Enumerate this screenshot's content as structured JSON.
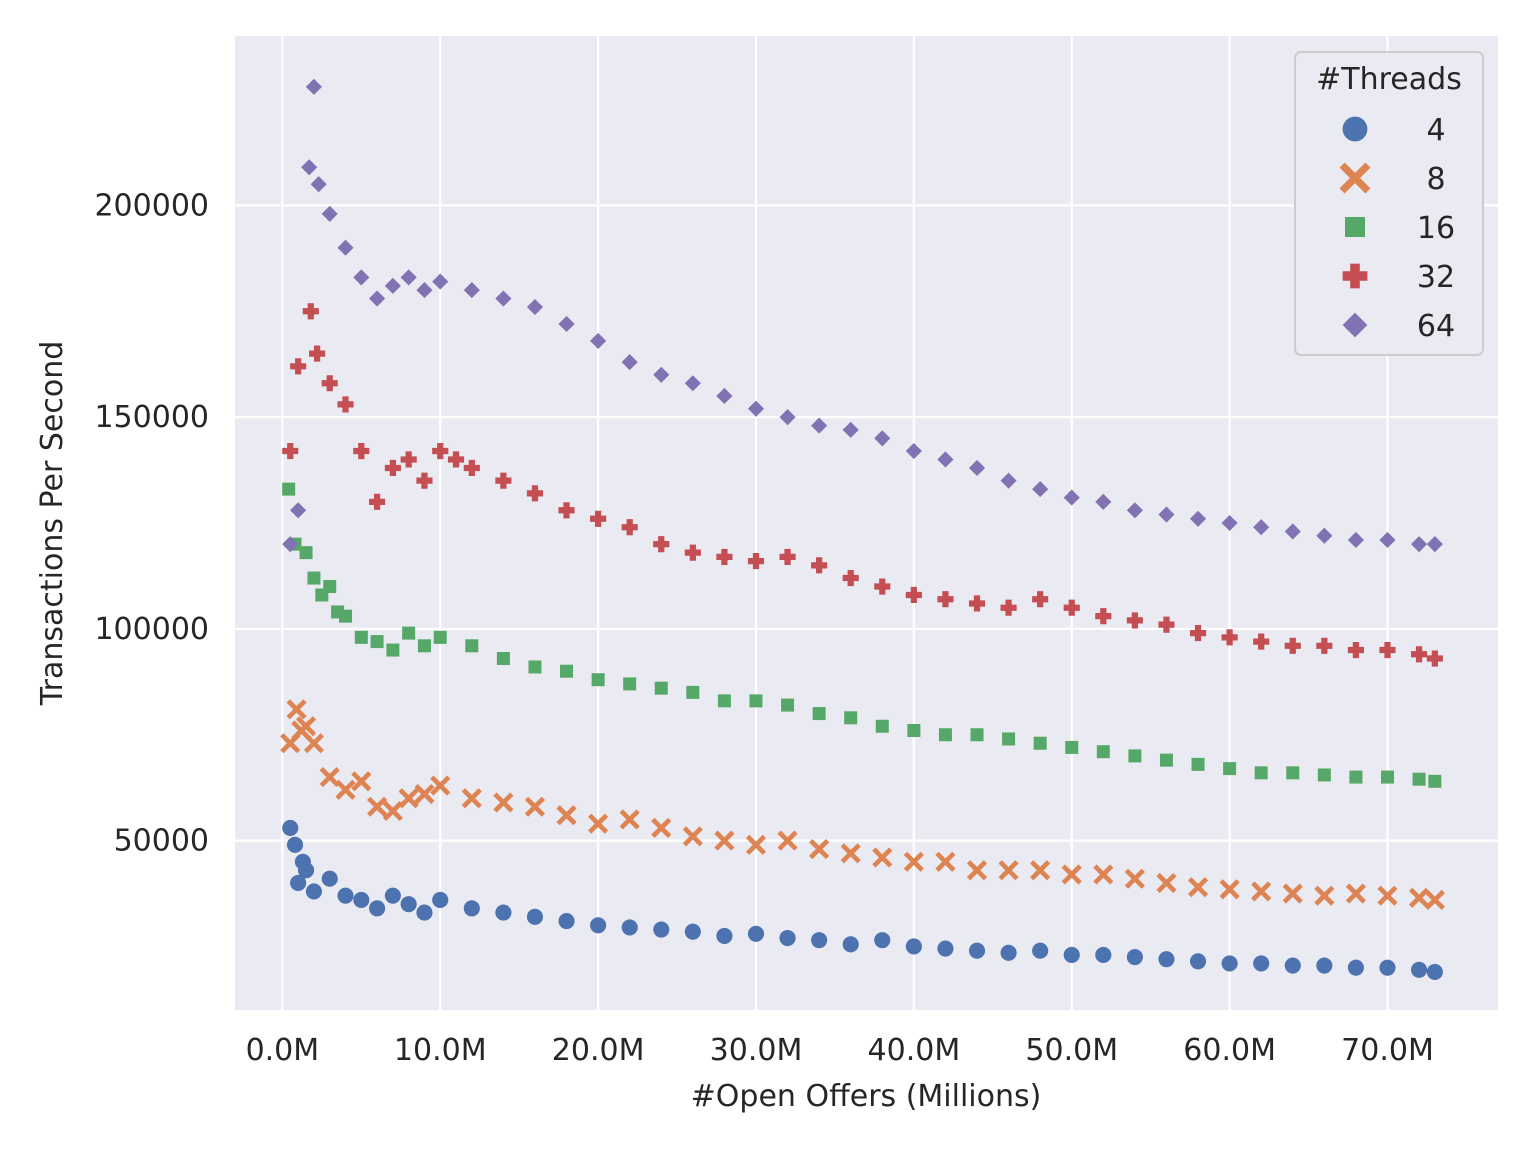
{
  "chart_data": {
    "type": "scatter",
    "title": "",
    "xlabel": "#Open Offers (Millions)",
    "ylabel": "Transactions Per Second",
    "xlim": [
      -3.0,
      77.0
    ],
    "ylim": [
      10000,
      240000
    ],
    "xticks": [
      0,
      10,
      20,
      30,
      40,
      50,
      60,
      70
    ],
    "xtick_labels": [
      "0.0M",
      "10.0M",
      "20.0M",
      "30.0M",
      "40.0M",
      "50.0M",
      "60.0M",
      "70.0M"
    ],
    "yticks": [
      50000,
      100000,
      150000,
      200000
    ],
    "ytick_labels": [
      "50000",
      "100000",
      "150000",
      "200000"
    ],
    "grid": true,
    "background": "#eaeaf2",
    "legend": {
      "title": "#Threads",
      "placement": "top-right"
    },
    "series": [
      {
        "name": "4",
        "marker": "circle",
        "color": "#4c72b0",
        "x": [
          0.5,
          0.8,
          1,
          1.3,
          1.5,
          2,
          3,
          4,
          5,
          6,
          7,
          8,
          9,
          10,
          12,
          14,
          16,
          18,
          20,
          22,
          24,
          26,
          28,
          30,
          32,
          34,
          36,
          38,
          40,
          42,
          44,
          46,
          48,
          50,
          52,
          54,
          56,
          58,
          60,
          62,
          64,
          66,
          68,
          70,
          72,
          73
        ],
        "y": [
          53000,
          49000,
          40000,
          45000,
          43000,
          38000,
          41000,
          37000,
          36000,
          34000,
          37000,
          35000,
          33000,
          36000,
          34000,
          33000,
          32000,
          31000,
          30000,
          29500,
          29000,
          28500,
          27500,
          28000,
          27000,
          26500,
          25500,
          26500,
          25000,
          24500,
          24000,
          23500,
          24000,
          23000,
          23000,
          22500,
          22000,
          21500,
          21000,
          21000,
          20500,
          20500,
          20000,
          20000,
          19500,
          19000
        ]
      },
      {
        "name": "8",
        "marker": "x",
        "color": "#dd8452",
        "x": [
          0.5,
          0.9,
          1.2,
          1.5,
          2,
          3,
          4,
          5,
          6,
          7,
          8,
          9,
          10,
          12,
          14,
          16,
          18,
          20,
          22,
          24,
          26,
          28,
          30,
          32,
          34,
          36,
          38,
          40,
          42,
          44,
          46,
          48,
          50,
          52,
          54,
          56,
          58,
          60,
          62,
          64,
          66,
          68,
          70,
          72,
          73
        ],
        "y": [
          73000,
          81000,
          76000,
          77000,
          73000,
          65000,
          62000,
          64000,
          58000,
          57000,
          60000,
          61000,
          63000,
          60000,
          59000,
          58000,
          56000,
          54000,
          55000,
          53000,
          51000,
          50000,
          49000,
          50000,
          48000,
          47000,
          46000,
          45000,
          45000,
          43000,
          43000,
          43000,
          42000,
          42000,
          41000,
          40000,
          39000,
          38500,
          38000,
          37500,
          37000,
          37500,
          37000,
          36500,
          36000
        ]
      },
      {
        "name": "16",
        "marker": "square",
        "color": "#55a868",
        "x": [
          0.4,
          0.8,
          1.5,
          2,
          2.5,
          3,
          3.5,
          4,
          5,
          6,
          7,
          8,
          9,
          10,
          12,
          14,
          16,
          18,
          20,
          22,
          24,
          26,
          28,
          30,
          32,
          34,
          36,
          38,
          40,
          42,
          44,
          46,
          48,
          50,
          52,
          54,
          56,
          58,
          60,
          62,
          64,
          66,
          68,
          70,
          72,
          73
        ],
        "y": [
          133000,
          120000,
          118000,
          112000,
          108000,
          110000,
          104000,
          103000,
          98000,
          97000,
          95000,
          99000,
          96000,
          98000,
          96000,
          93000,
          91000,
          90000,
          88000,
          87000,
          86000,
          85000,
          83000,
          83000,
          82000,
          80000,
          79000,
          77000,
          76000,
          75000,
          75000,
          74000,
          73000,
          72000,
          71000,
          70000,
          69000,
          68000,
          67000,
          66000,
          66000,
          65500,
          65000,
          65000,
          64500,
          64000
        ]
      },
      {
        "name": "32",
        "marker": "plus",
        "color": "#c44e52",
        "x": [
          0.5,
          1,
          1.8,
          2.2,
          3,
          4,
          5,
          6,
          7,
          8,
          9,
          10,
          11,
          12,
          14,
          16,
          18,
          20,
          22,
          24,
          26,
          28,
          30,
          32,
          34,
          36,
          38,
          40,
          42,
          44,
          46,
          48,
          50,
          52,
          54,
          56,
          58,
          60,
          62,
          64,
          66,
          68,
          70,
          72,
          73
        ],
        "y": [
          142000,
          162000,
          175000,
          165000,
          158000,
          153000,
          142000,
          130000,
          138000,
          140000,
          135000,
          142000,
          140000,
          138000,
          135000,
          132000,
          128000,
          126000,
          124000,
          120000,
          118000,
          117000,
          116000,
          117000,
          115000,
          112000,
          110000,
          108000,
          107000,
          106000,
          105000,
          107000,
          105000,
          103000,
          102000,
          101000,
          99000,
          98000,
          97000,
          96000,
          96000,
          95000,
          95000,
          94000,
          93000
        ]
      },
      {
        "name": "64",
        "marker": "diamond",
        "color": "#8172b3",
        "x": [
          0.5,
          1,
          1.7,
          2,
          2.3,
          3,
          4,
          5,
          6,
          7,
          8,
          9,
          10,
          12,
          14,
          16,
          18,
          20,
          22,
          24,
          26,
          28,
          30,
          32,
          34,
          36,
          38,
          40,
          42,
          44,
          46,
          48,
          50,
          52,
          54,
          56,
          58,
          60,
          62,
          64,
          66,
          68,
          70,
          72,
          73
        ],
        "y": [
          120000,
          128000,
          209000,
          228000,
          205000,
          198000,
          190000,
          183000,
          178000,
          181000,
          183000,
          180000,
          182000,
          180000,
          178000,
          176000,
          172000,
          168000,
          163000,
          160000,
          158000,
          155000,
          152000,
          150000,
          148000,
          147000,
          145000,
          142000,
          140000,
          138000,
          135000,
          133000,
          131000,
          130000,
          128000,
          127000,
          126000,
          125000,
          124000,
          123000,
          122000,
          121000,
          121000,
          120000,
          120000
        ]
      }
    ]
  }
}
